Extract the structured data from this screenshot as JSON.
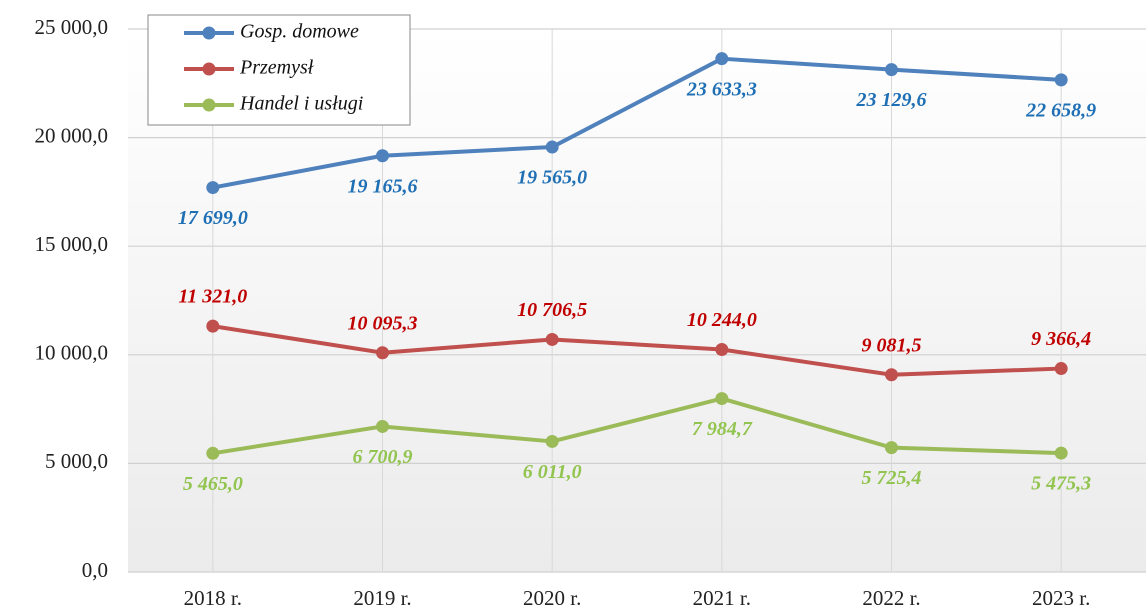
{
  "chart_data": {
    "type": "line",
    "categories": [
      "2018 r.",
      "2019 r.",
      "2020 r.",
      "2021 r.",
      "2022 r.",
      "2023 r."
    ],
    "series": [
      {
        "name": "Gosp. domowe",
        "color": "#4f81bd",
        "label_color": "#1f6fb5",
        "values": [
          17699.0,
          19165.6,
          19565.0,
          23633.3,
          23129.6,
          22658.9
        ],
        "value_labels": [
          "17 699,0",
          "19 165,6",
          "19 565,0",
          "23 633,3",
          "23 129,6",
          "22 658,9"
        ]
      },
      {
        "name": "Przemysł",
        "color": "#c0504d",
        "label_color": "#c00000",
        "values": [
          11321.0,
          10095.3,
          10706.5,
          10244.0,
          9081.5,
          9366.4
        ],
        "value_labels": [
          "11 321,0",
          "10 095,3",
          "10 706,5",
          "10 244,0",
          "9 081,5",
          "9 366,4"
        ]
      },
      {
        "name": "Handel i usługi",
        "color": "#9bbb59",
        "label_color": "#92c450",
        "values": [
          5465.0,
          6700.9,
          6011.0,
          7984.7,
          5725.4,
          5475.3
        ],
        "value_labels": [
          "5 465,0",
          "6 700,9",
          "6 011,0",
          "7 984,7",
          "5 725,4",
          "5 475,3"
        ]
      }
    ],
    "ylim": [
      0,
      25000
    ],
    "yticks": [
      {
        "value": 0,
        "label": "0,0"
      },
      {
        "value": 5000,
        "label": "5 000,0"
      },
      {
        "value": 10000,
        "label": "10 000,0"
      },
      {
        "value": 15000,
        "label": "15 000,0"
      },
      {
        "value": 20000,
        "label": "20 000,0"
      },
      {
        "value": 25000,
        "label": "25 000,0"
      }
    ],
    "grid": true,
    "legend": "upper left"
  }
}
